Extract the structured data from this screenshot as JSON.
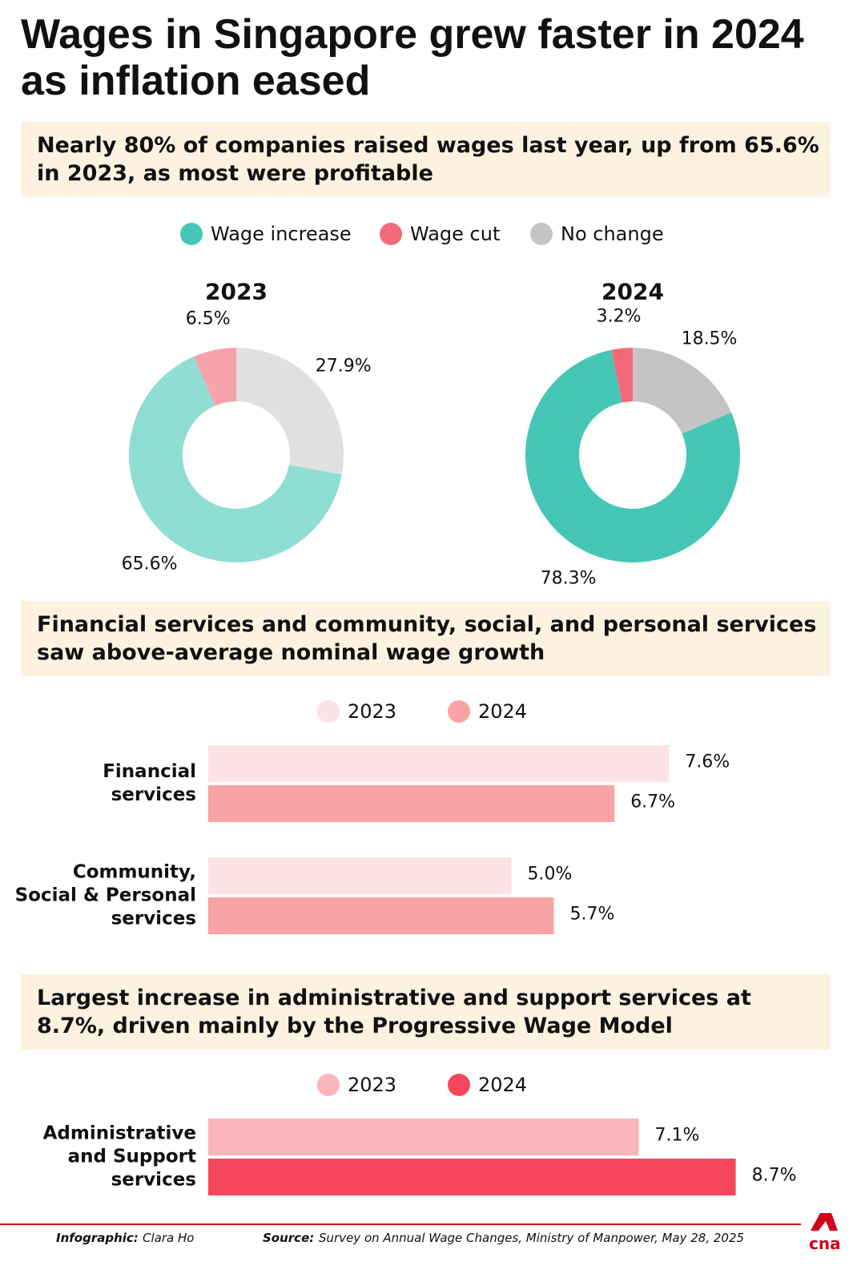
{
  "title": "Wages in Singapore grew faster in 2024 as inflation eased",
  "chart_data": [
    {
      "type": "donut",
      "subtitle": "Nearly 80% of companies raised wages last year, up from 65.6% in 2023, as most were profitable",
      "categories": [
        "Wage increase",
        "Wage cut",
        "No change"
      ],
      "colors": [
        "#46c7b5",
        "#f26a7a",
        "#c4c4c4"
      ],
      "series": [
        {
          "name": "2023",
          "colors": [
            "#8fded3",
            "#f7a3ab",
            "#e0e0e0"
          ],
          "values": [
            65.6,
            6.5,
            27.9
          ],
          "value_labels": [
            "65.6%",
            "6.5%",
            "27.9%"
          ]
        },
        {
          "name": "2024",
          "colors": [
            "#46c7b5",
            "#f26a7a",
            "#c4c4c4"
          ],
          "values": [
            78.3,
            3.2,
            18.5
          ],
          "value_labels": [
            "78.3%",
            "3.2%",
            "18.5%"
          ]
        }
      ]
    },
    {
      "type": "bar",
      "subtitle": "Financial services and community, social, and personal services saw above-average nominal wage growth",
      "categories": [
        "Financial\nservices",
        "Community,\nSocial & Personal\nservices"
      ],
      "series": [
        {
          "name": "2023",
          "color": "#fde2e5",
          "values": [
            7.6,
            5.0
          ],
          "value_labels": [
            "7.6%",
            "5.0%"
          ]
        },
        {
          "name": "2024",
          "color": "#f9a3a6",
          "values": [
            6.7,
            5.7
          ],
          "value_labels": [
            "6.7%",
            "5.7%"
          ]
        }
      ]
    },
    {
      "type": "bar",
      "subtitle": "Largest increase in administrative and support services at 8.7%, driven mainly by the Progressive Wage Model",
      "categories": [
        "Administrative\nand Support\nservices"
      ],
      "series": [
        {
          "name": "2023",
          "color": "#fbb5bb",
          "values": [
            7.1
          ],
          "value_labels": [
            "7.1%"
          ]
        },
        {
          "name": "2024",
          "color": "#f7475e",
          "values": [
            8.7
          ],
          "value_labels": [
            "8.7%"
          ]
        }
      ]
    }
  ],
  "footer": {
    "credit_label": "Infographic:",
    "credit": "Clara Ho",
    "source_label": "Source:",
    "source": "Survey on Annual Wage Changes, Ministry of Manpower, May 28, 2025",
    "logo": "cna"
  }
}
